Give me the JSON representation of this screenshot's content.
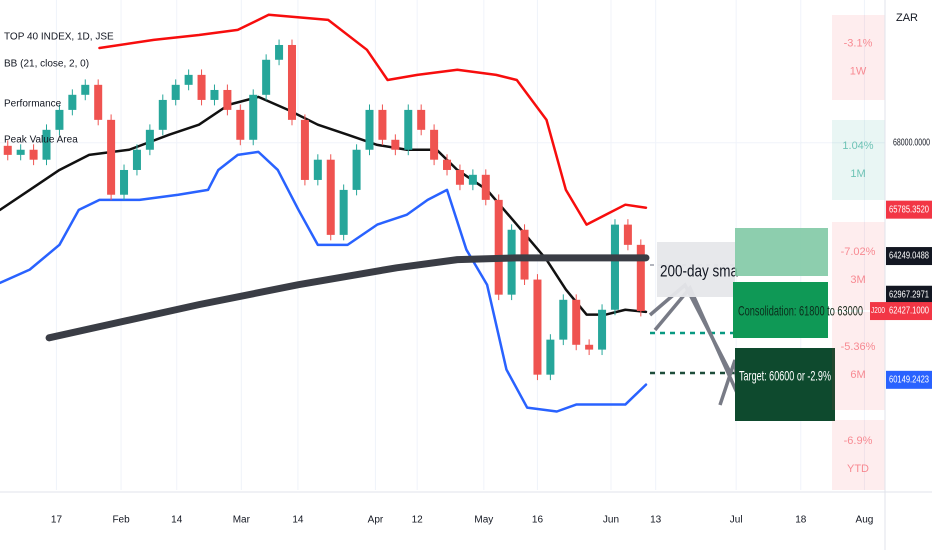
{
  "chart_data": {
    "type": "candlestick",
    "title": "TOP 40 INDEX, 1D, JSE",
    "indicators": [
      "BB (21, close, 2, 0)",
      "Performance",
      "Peak Value Area"
    ],
    "currency": "ZAR",
    "up_color": "#26a69a",
    "down_color": "#ef5350",
    "open": [
      67900,
      67600,
      67770,
      67440,
      68430,
      69090,
      69590,
      69920,
      68760,
      66280,
      67100,
      67770,
      68430,
      69420,
      69920,
      70250,
      69420,
      69750,
      69090,
      68100,
      69590,
      70750,
      71240,
      68760,
      66770,
      67440,
      64950,
      66440,
      67770,
      69090,
      68100,
      67770,
      69090,
      68430,
      67440,
      67100,
      66610,
      66940,
      66110,
      62970,
      65120,
      63470,
      60320,
      61480,
      62800,
      61310,
      61150,
      62470,
      65290,
      64620
    ],
    "high": [
      68080,
      67950,
      67950,
      68610,
      69270,
      69770,
      70100,
      70100,
      68940,
      67280,
      67950,
      68610,
      69600,
      70100,
      70430,
      70430,
      69930,
      69930,
      69270,
      69770,
      70930,
      71420,
      71420,
      68940,
      67620,
      67620,
      66620,
      67950,
      69270,
      69270,
      68280,
      69270,
      69270,
      68610,
      67620,
      67280,
      67120,
      67120,
      66290,
      65300,
      65300,
      63650,
      61660,
      62980,
      62980,
      61490,
      62650,
      65470,
      65470,
      64800
    ],
    "low": [
      67420,
      67420,
      67260,
      67260,
      68250,
      68910,
      69410,
      68580,
      66100,
      66100,
      66920,
      67590,
      68250,
      69240,
      69740,
      69240,
      69240,
      68910,
      67920,
      67920,
      69410,
      70570,
      68580,
      66590,
      66590,
      64770,
      64770,
      66260,
      67590,
      67920,
      67590,
      67590,
      68250,
      67260,
      66920,
      66430,
      66430,
      65930,
      62790,
      62790,
      63290,
      60140,
      60140,
      61300,
      61130,
      60970,
      60970,
      62290,
      64440,
      62250
    ],
    "close": [
      67600,
      67770,
      67440,
      68430,
      69090,
      69590,
      69920,
      68760,
      66280,
      67100,
      67770,
      68430,
      69420,
      69920,
      70250,
      69420,
      69750,
      69090,
      68100,
      69590,
      70750,
      71240,
      68760,
      66770,
      67440,
      64950,
      66440,
      67770,
      69090,
      68100,
      67770,
      69090,
      68430,
      67440,
      67100,
      66610,
      66940,
      66110,
      62970,
      65120,
      63470,
      60320,
      61480,
      62800,
      61310,
      61150,
      62470,
      65290,
      64620,
      62430
    ],
    "overlays": [
      {
        "color": "#f70d0d",
        "width": 2.5,
        "x": [
          7.1,
          11.3,
          14.8,
          17.8,
          20.2,
          24.8,
          27.8,
          29.4,
          31.7,
          34.8,
          37.8,
          39.4,
          41.7,
          43.2,
          44.8,
          46.3,
          47.8,
          49.4
        ],
        "values": [
          71140,
          71410,
          71570,
          71740,
          72240,
          72070,
          71080,
          70080,
          70250,
          70420,
          70250,
          70080,
          68760,
          66440,
          65290,
          65620,
          65950,
          65850
        ]
      },
      {
        "color": "#111111",
        "width": 2.5,
        "x": [
          -0.6,
          1.7,
          4,
          6.3,
          9.4,
          12.5,
          14.8,
          17.1,
          19.4,
          21.7,
          24,
          26.3,
          28.6,
          30.9,
          33.2,
          34.8,
          37.1,
          39.4,
          41.7,
          43.2,
          44.8,
          46.3,
          47.8,
          49.4
        ],
        "values": [
          65780,
          66440,
          67100,
          67600,
          67770,
          68270,
          68600,
          69260,
          69520,
          69090,
          68600,
          68270,
          67930,
          67770,
          67770,
          67100,
          66440,
          65290,
          64130,
          63140,
          62310,
          62310,
          62470,
          62400
        ]
      },
      {
        "color": "#2962ff",
        "width": 2.5,
        "x": [
          -0.6,
          1.7,
          4,
          5.5,
          7.1,
          10.2,
          13.2,
          15.5,
          16.3,
          17.8,
          19.4,
          20.9,
          22.5,
          24,
          26.3,
          28.6,
          30.9,
          32.5,
          34,
          35.5,
          37.1,
          38.6,
          40.2,
          42.5,
          44,
          46.3,
          47.8,
          49.4
        ],
        "values": [
          63360,
          63800,
          64620,
          65780,
          66110,
          66110,
          66280,
          66440,
          67100,
          67600,
          67700,
          67100,
          65780,
          64620,
          64620,
          65290,
          65620,
          66110,
          66440,
          64460,
          63300,
          60490,
          59230,
          59100,
          59330,
          59330,
          59330,
          59990
        ]
      },
      {
        "color": "#3a3d45",
        "width": 7,
        "x": [
          3.2,
          14.8,
          22.5,
          30.1,
          34.8,
          39.4,
          49.4
        ],
        "values": [
          61540,
          62640,
          63300,
          63860,
          64130,
          64190,
          64190
        ]
      }
    ],
    "xlim": [
      -0.6,
      67.9
    ],
    "ylim": [
      56500,
      72730
    ],
    "xticks": [
      {
        "value": 3.77,
        "label": "17"
      },
      {
        "value": 8.77,
        "label": "Feb"
      },
      {
        "value": 13.08,
        "label": "14"
      },
      {
        "value": 18.08,
        "label": "Mar"
      },
      {
        "value": 22.46,
        "label": "14"
      },
      {
        "value": 28.46,
        "label": "Apr"
      },
      {
        "value": 31.69,
        "label": "12"
      },
      {
        "value": 36.85,
        "label": "May"
      },
      {
        "value": 41.0,
        "label": "16"
      },
      {
        "value": 46.69,
        "label": "Jun"
      },
      {
        "value": 50.15,
        "label": "13"
      },
      {
        "value": 56.38,
        "label": "Jul"
      },
      {
        "value": 61.38,
        "label": "18"
      },
      {
        "value": 66.31,
        "label": "Aug"
      }
    ],
    "yticks": [
      {
        "value": 68000,
        "label": "68000.0000"
      }
    ],
    "grid": true,
    "price_tags": [
      {
        "value": 65785.352,
        "label": "65785.3520",
        "color": "#f23645"
      },
      {
        "value": 64249.0488,
        "label": "64249.0488",
        "color": "#131722"
      },
      {
        "value": 62967.2971,
        "label": "62967.2971",
        "color": "#131722"
      },
      {
        "value": 62427.1,
        "label": "62427.1000",
        "color": "#f23645"
      },
      {
        "value": 60149.2423,
        "label": "60149.2423",
        "color": "#2962ff"
      }
    ],
    "symbol_tag": "J200",
    "performance": [
      {
        "change": "-3.1%",
        "period": "1W",
        "color": "#f23645"
      },
      {
        "change": "1.04%",
        "period": "1M",
        "color": "#089981"
      },
      {
        "change": "-7.02%",
        "period": "3M",
        "color": "#f23645"
      },
      {
        "change": "-5.36%",
        "period": "6M",
        "color": "#f23645"
      },
      {
        "change": "-6.9%",
        "period": "YTD",
        "color": "#f23645"
      }
    ],
    "annotations": [
      "200-day sma",
      "Consolidation: 61800 to 63000",
      "Target: 60600 or -2.9%"
    ]
  }
}
